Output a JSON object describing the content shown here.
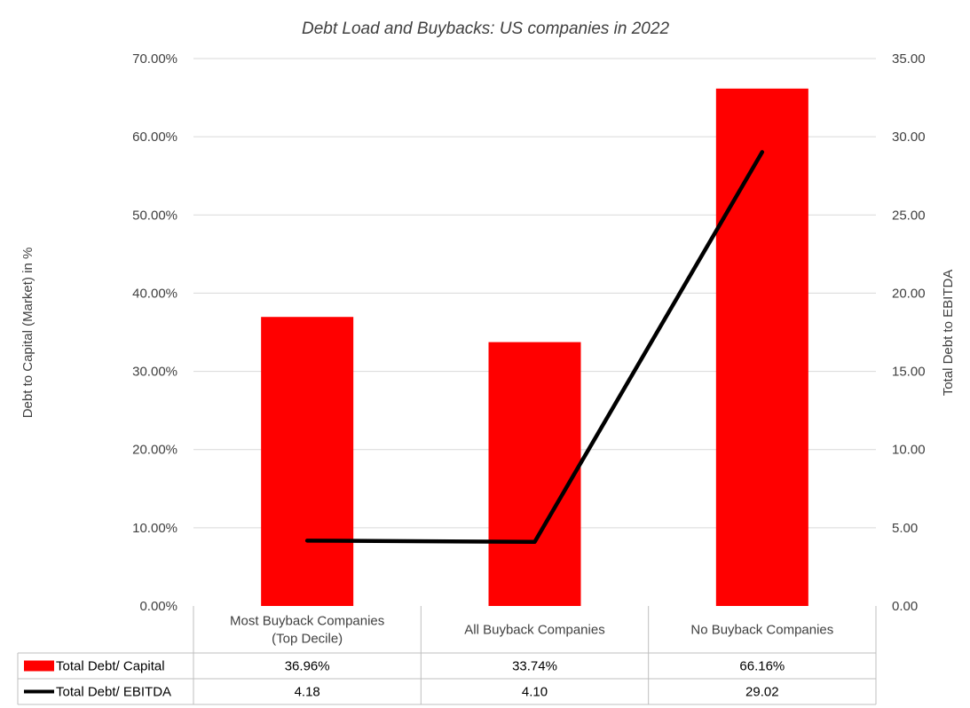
{
  "chart_data": {
    "type": "bar",
    "title": "Debt Load and Buybacks: US companies in 2022",
    "categories": [
      [
        "Most Buyback Companies",
        "(Top Decile)"
      ],
      [
        "All Buyback Companies"
      ],
      [
        "No Buyback Companies"
      ]
    ],
    "ylabel": "Debt to Capital (Market) in %",
    "y2label": "Total Debt to EBITDA",
    "ylim": [
      0,
      0.7
    ],
    "y2lim": [
      0,
      35
    ],
    "y_ticks": [
      "0.00%",
      "10.00%",
      "20.00%",
      "30.00%",
      "40.00%",
      "50.00%",
      "60.00%",
      "70.00%"
    ],
    "y2_ticks": [
      "0.00",
      "5.00",
      "10.00",
      "15.00",
      "20.00",
      "25.00",
      "30.00",
      "35.00"
    ],
    "grid": true,
    "series": [
      {
        "name": "Total Debt/ Capital",
        "kind": "bar",
        "axis": "left",
        "color": "#ff0000",
        "values": [
          0.3696,
          0.3374,
          0.6616
        ],
        "labels": [
          "36.96%",
          "33.74%",
          "66.16%"
        ]
      },
      {
        "name": "Total Debt/ EBITDA",
        "kind": "line",
        "axis": "right",
        "color": "#000000",
        "values": [
          4.18,
          4.1,
          29.02
        ],
        "labels": [
          "4.18",
          "4.10",
          "29.02"
        ]
      }
    ],
    "data_table": true
  }
}
